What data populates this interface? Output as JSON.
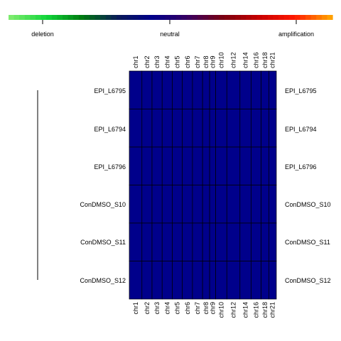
{
  "chart_data": {
    "type": "heatmap",
    "title": "",
    "xlabel": "",
    "ylabel": "",
    "legend": {
      "placement": "top",
      "labels": {
        "left": "deletion",
        "center": "neutral",
        "right": "amplification"
      },
      "colors": [
        "#7CEB6E",
        "#11D63A",
        "#007A10",
        "#0A1A57",
        "#00008B",
        "#3A0060",
        "#7A0010",
        "#C80000",
        "#FF1800",
        "#FFA000"
      ]
    },
    "columns": [
      "chr1",
      "chr2",
      "chr3",
      "chr4",
      "chr5",
      "chr6",
      "chr7",
      "chr8",
      "chr9",
      "chr10",
      "chr12",
      "chr14",
      "chr16",
      "chr18",
      "chr21"
    ],
    "column_weights": [
      2.5,
      2.0,
      2.0,
      2.0,
      2.0,
      2.0,
      2.0,
      1.4,
      1.2,
      2.2,
      2.6,
      2.2,
      2.0,
      1.5,
      1.5
    ],
    "rows": [
      "EPI_L6795",
      "EPI_L6794",
      "EPI_L6796",
      "ConDMSO_S10",
      "ConDMSO_S11",
      "ConDMSO_S12"
    ],
    "values": [
      [
        0,
        0,
        0,
        0,
        0,
        0,
        0,
        0,
        0,
        0,
        0,
        0,
        0,
        0,
        0
      ],
      [
        0,
        0,
        0,
        0,
        0,
        0,
        0,
        0,
        0,
        0,
        0,
        0,
        0,
        0,
        0
      ],
      [
        0,
        0,
        0,
        0,
        0,
        0,
        0,
        0,
        0,
        0,
        0,
        0,
        0,
        0,
        0
      ],
      [
        0,
        0,
        0,
        0,
        0,
        0,
        0,
        0,
        0,
        0,
        0,
        0,
        0,
        0,
        0
      ],
      [
        0,
        0,
        0,
        0,
        0,
        0,
        0,
        0,
        0,
        0,
        0,
        0,
        0,
        0,
        0
      ],
      [
        0,
        0,
        0,
        0,
        0,
        0,
        0,
        0,
        0,
        0,
        0,
        0,
        0,
        0,
        0
      ]
    ],
    "value_range": [
      -1,
      1
    ],
    "fill_color": "#00008B",
    "dendrogram": "left"
  }
}
